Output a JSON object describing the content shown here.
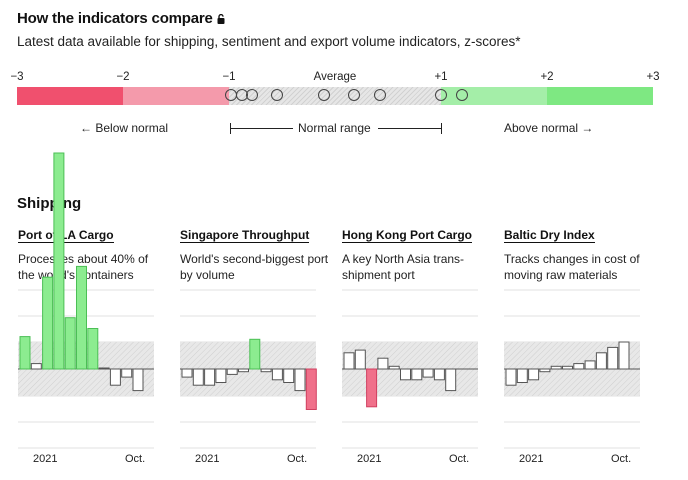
{
  "header": {
    "title": "How the indicators compare",
    "subtitle": "Latest data available for shipping, sentiment and export volume indicators, z-scores*"
  },
  "scale": {
    "ticks": [
      "−3",
      "−2",
      "−1",
      "Average",
      "+1",
      "+2",
      "+3"
    ],
    "below_label": "Below normal",
    "range_label": "Normal range",
    "above_label": "Above normal",
    "colors": {
      "far_below": "#f0506e",
      "below": "#f49aab",
      "normal": "#e6e6e6",
      "above": "#a4eea8",
      "far_above": "#7ee882"
    },
    "circles_z": [
      -0.55,
      -0.98,
      -0.88,
      -0.78,
      -0.1,
      0.18,
      0.42,
      1.0,
      1.2
    ]
  },
  "section": {
    "title": "Shipping"
  },
  "chart_data": [
    {
      "type": "bar",
      "title": "Port of LA Cargo",
      "subtitle": "Processes about 40% of the world's containers",
      "x_labels": [
        "2021",
        "Oct."
      ],
      "values": [
        1.2,
        0.2,
        3.4,
        8.0,
        1.9,
        3.8,
        1.5,
        0.0,
        -0.6,
        -0.3,
        -0.8
      ]
    },
    {
      "type": "bar",
      "title": "Singapore Throughput",
      "subtitle": "World's second-biggest port by volume",
      "x_labels": [
        "2021",
        "Oct."
      ],
      "values": [
        -0.3,
        -0.6,
        -0.6,
        -0.5,
        -0.2,
        -0.1,
        1.1,
        -0.1,
        -0.4,
        -0.5,
        -0.8,
        -1.5
      ]
    },
    {
      "type": "bar",
      "title": "Hong Kong Port Cargo",
      "subtitle": "A key North Asia trans-shipment port",
      "x_labels": [
        "2021",
        "Oct."
      ],
      "values": [
        0.6,
        0.7,
        -1.4,
        0.4,
        0.1,
        -0.4,
        -0.4,
        -0.3,
        -0.4,
        -0.8
      ]
    },
    {
      "type": "bar",
      "title": "Baltic Dry Index",
      "subtitle": "Tracks changes in cost of moving raw materials",
      "x_labels": [
        "2021",
        "Oct."
      ],
      "values": [
        -0.6,
        -0.5,
        -0.4,
        -0.1,
        0.1,
        0.1,
        0.2,
        0.3,
        0.6,
        0.8,
        1.0
      ]
    }
  ]
}
